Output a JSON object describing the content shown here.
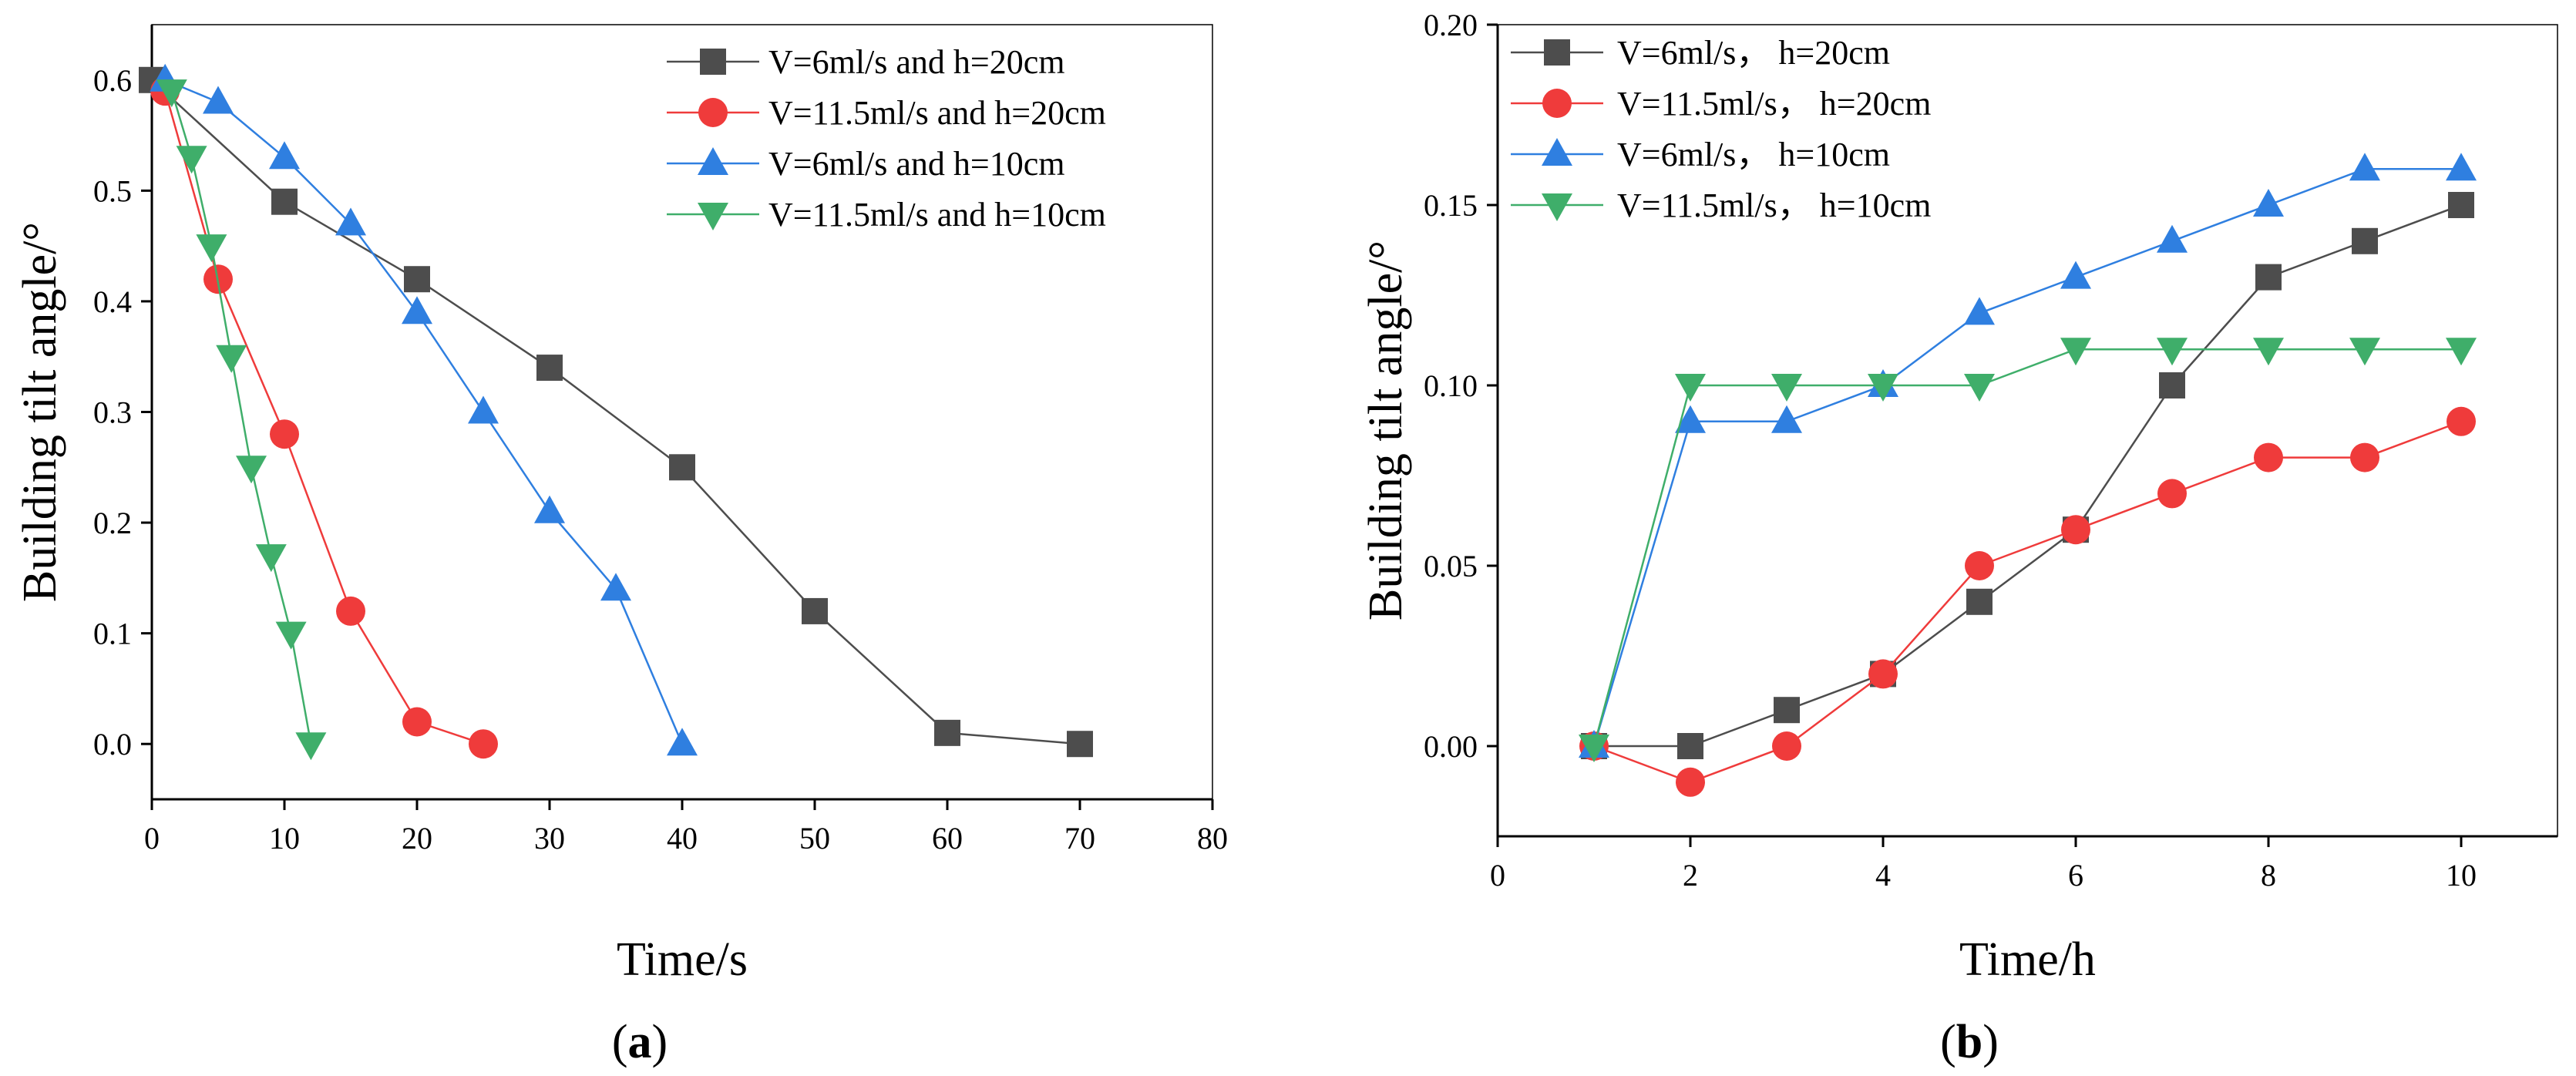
{
  "chart_data": [
    {
      "type": "line",
      "panel_label": "(a)",
      "panel_letter": "a",
      "xlabel": "Time/s",
      "ylabel": "Building tilt angle/°",
      "xlim": [
        0,
        80
      ],
      "ylim": [
        -0.05,
        0.65
      ],
      "xticks": [
        0,
        10,
        20,
        30,
        40,
        50,
        60,
        70,
        80
      ],
      "yticks": [
        0.0,
        0.1,
        0.2,
        0.3,
        0.4,
        0.5,
        0.6
      ],
      "ytick_decimals": 1,
      "legend_position": "top-right",
      "series": [
        {
          "name": "V=6ml/s and h=20cm",
          "marker": "square",
          "color": "#4d4d4d",
          "x": [
            0,
            10,
            20,
            30,
            40,
            50,
            60,
            70
          ],
          "y": [
            0.6,
            0.49,
            0.42,
            0.34,
            0.25,
            0.12,
            0.01,
            0.0
          ]
        },
        {
          "name": "V=11.5ml/s and h=20cm",
          "marker": "circle",
          "color": "#ef3b3b",
          "x": [
            1,
            5,
            10,
            15,
            20,
            25
          ],
          "y": [
            0.59,
            0.42,
            0.28,
            0.12,
            0.02,
            0.0
          ]
        },
        {
          "name": "V=6ml/s and h=10cm",
          "marker": "triangle-up",
          "color": "#2f7fe0",
          "x": [
            1,
            5,
            10,
            15,
            20,
            25,
            30,
            35,
            40
          ],
          "y": [
            0.6,
            0.58,
            0.53,
            0.47,
            0.39,
            0.3,
            0.21,
            0.14,
            0.0
          ]
        },
        {
          "name": "V=11.5ml/s and h=10cm",
          "marker": "triangle-down",
          "color": "#3fae6a",
          "x": [
            1.5,
            3,
            4.5,
            6,
            7.5,
            9,
            10.5,
            12
          ],
          "y": [
            0.59,
            0.53,
            0.45,
            0.35,
            0.25,
            0.17,
            0.1,
            0.0
          ]
        }
      ]
    },
    {
      "type": "line",
      "panel_label": "(b)",
      "panel_letter": "b",
      "xlabel": "Time/h",
      "ylabel": "Building tilt angle/°",
      "xlim": [
        0,
        11
      ],
      "ylim": [
        -0.025,
        0.2
      ],
      "xticks": [
        0,
        2,
        4,
        6,
        8,
        10
      ],
      "yticks": [
        0.0,
        0.05,
        0.1,
        0.15,
        0.2
      ],
      "ytick_decimals": 2,
      "legend_position": "top-left",
      "series": [
        {
          "name": "V=6ml/s， h=20cm",
          "marker": "square",
          "color": "#4d4d4d",
          "x": [
            1,
            2,
            3,
            4,
            5,
            6,
            7,
            8,
            9,
            10
          ],
          "y": [
            0.0,
            0.0,
            0.01,
            0.02,
            0.04,
            0.06,
            0.1,
            0.13,
            0.14,
            0.15
          ]
        },
        {
          "name": "V=11.5ml/s， h=20cm",
          "marker": "circle",
          "color": "#ef3b3b",
          "x": [
            1,
            2,
            3,
            4,
            5,
            6,
            7,
            8,
            9,
            10
          ],
          "y": [
            0.0,
            -0.01,
            0.0,
            0.02,
            0.05,
            0.06,
            0.07,
            0.08,
            0.08,
            0.09
          ]
        },
        {
          "name": "V=6ml/s， h=10cm",
          "marker": "triangle-up",
          "color": "#2f7fe0",
          "x": [
            1,
            2,
            3,
            4,
            5,
            6,
            7,
            8,
            9,
            10
          ],
          "y": [
            0.0,
            0.09,
            0.09,
            0.1,
            0.12,
            0.13,
            0.14,
            0.15,
            0.16,
            0.16
          ]
        },
        {
          "name": "V=11.5ml/s， h=10cm",
          "marker": "triangle-down",
          "color": "#3fae6a",
          "x": [
            1,
            2,
            3,
            4,
            5,
            6,
            7,
            8,
            9,
            10
          ],
          "y": [
            0.0,
            0.1,
            0.1,
            0.1,
            0.1,
            0.11,
            0.11,
            0.11,
            0.11,
            0.11
          ]
        }
      ]
    }
  ]
}
